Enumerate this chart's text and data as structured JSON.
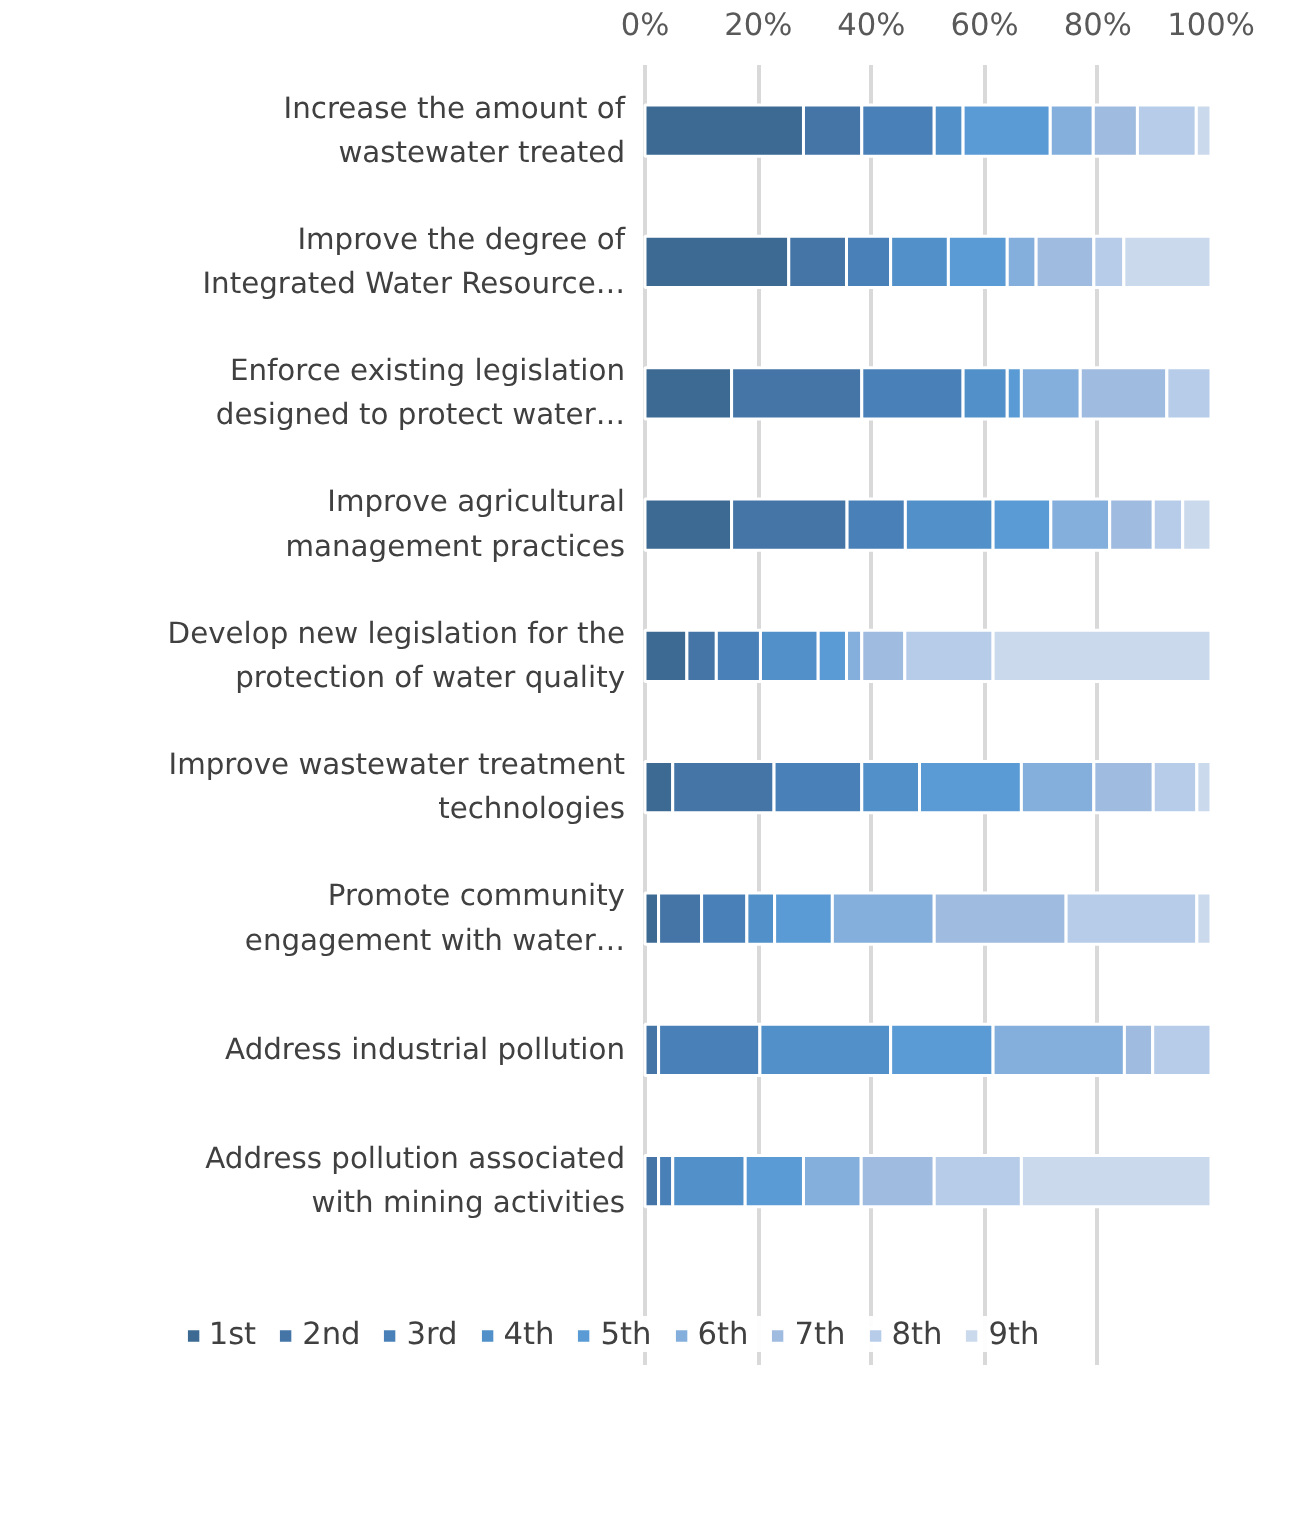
{
  "chart_data": {
    "type": "bar",
    "stacked": true,
    "orientation": "horizontal",
    "categories": [
      "Increase the amount of\nwastewater treated",
      "Improve the degree of\nIntegrated Water Resource…",
      "Enforce existing legislation\ndesigned to protect water…",
      "Improve agricultural\nmanagement practices",
      "Develop new legislation for the\nprotection of water quality",
      "Improve wastewater treatment\ntechnologies",
      "Promote community\nengagement with water…",
      "Address industrial pollution",
      "Address pollution associated\nwith mining activities"
    ],
    "series": [
      {
        "name": "1st",
        "color": "#3c6a93",
        "values": [
          28,
          25.4,
          15.3,
          15.3,
          7.4,
          4.9,
          2.4,
          0,
          0
        ]
      },
      {
        "name": "2nd",
        "color": "#4475a6",
        "values": [
          10.3,
          10.2,
          23,
          20.4,
          5.2,
          17.9,
          7.6,
          2.4,
          2.4
        ]
      },
      {
        "name": "3rd",
        "color": "#4a80b8",
        "values": [
          12.8,
          7.8,
          17.9,
          10.3,
          7.8,
          15.5,
          8,
          17.9,
          2.5
        ]
      },
      {
        "name": "4th",
        "color": "#5190c8",
        "values": [
          5.1,
          10.2,
          7.8,
          15.5,
          10.2,
          10.2,
          4.9,
          23.1,
          12.8
        ]
      },
      {
        "name": "5th",
        "color": "#5a9bd5",
        "values": [
          15.4,
          10.4,
          2.5,
          10.2,
          5,
          18,
          10.2,
          18.1,
          10.3
        ]
      },
      {
        "name": "6th",
        "color": "#84afdc",
        "values": [
          7.6,
          5.1,
          10.4,
          10.4,
          2.7,
          12.8,
          18,
          23.2,
          10.2
        ]
      },
      {
        "name": "7th",
        "color": "#a0bbe0",
        "values": [
          7.8,
          10.2,
          15.3,
          7.7,
          7.6,
          10.5,
          23.3,
          5,
          12.9
        ]
      },
      {
        "name": "8th",
        "color": "#b7cce8",
        "values": [
          10.4,
          5.3,
          7.8,
          5.2,
          15.6,
          7.7,
          23.1,
          10.3,
          15.4
        ]
      },
      {
        "name": "9th",
        "color": "#cbd9ed",
        "values": [
          2.6,
          15.4,
          0,
          5,
          38.5,
          2.5,
          2.5,
          0,
          33.5
        ]
      }
    ],
    "xlim": [
      0,
      100
    ],
    "xticks": [
      {
        "value": 0,
        "label": "0%"
      },
      {
        "value": 20,
        "label": "20%"
      },
      {
        "value": 40,
        "label": "40%"
      },
      {
        "value": 60,
        "label": "60%"
      },
      {
        "value": 80,
        "label": "80%"
      },
      {
        "value": 100,
        "label": "100%"
      }
    ],
    "grid": "x",
    "legend": "bottom"
  }
}
